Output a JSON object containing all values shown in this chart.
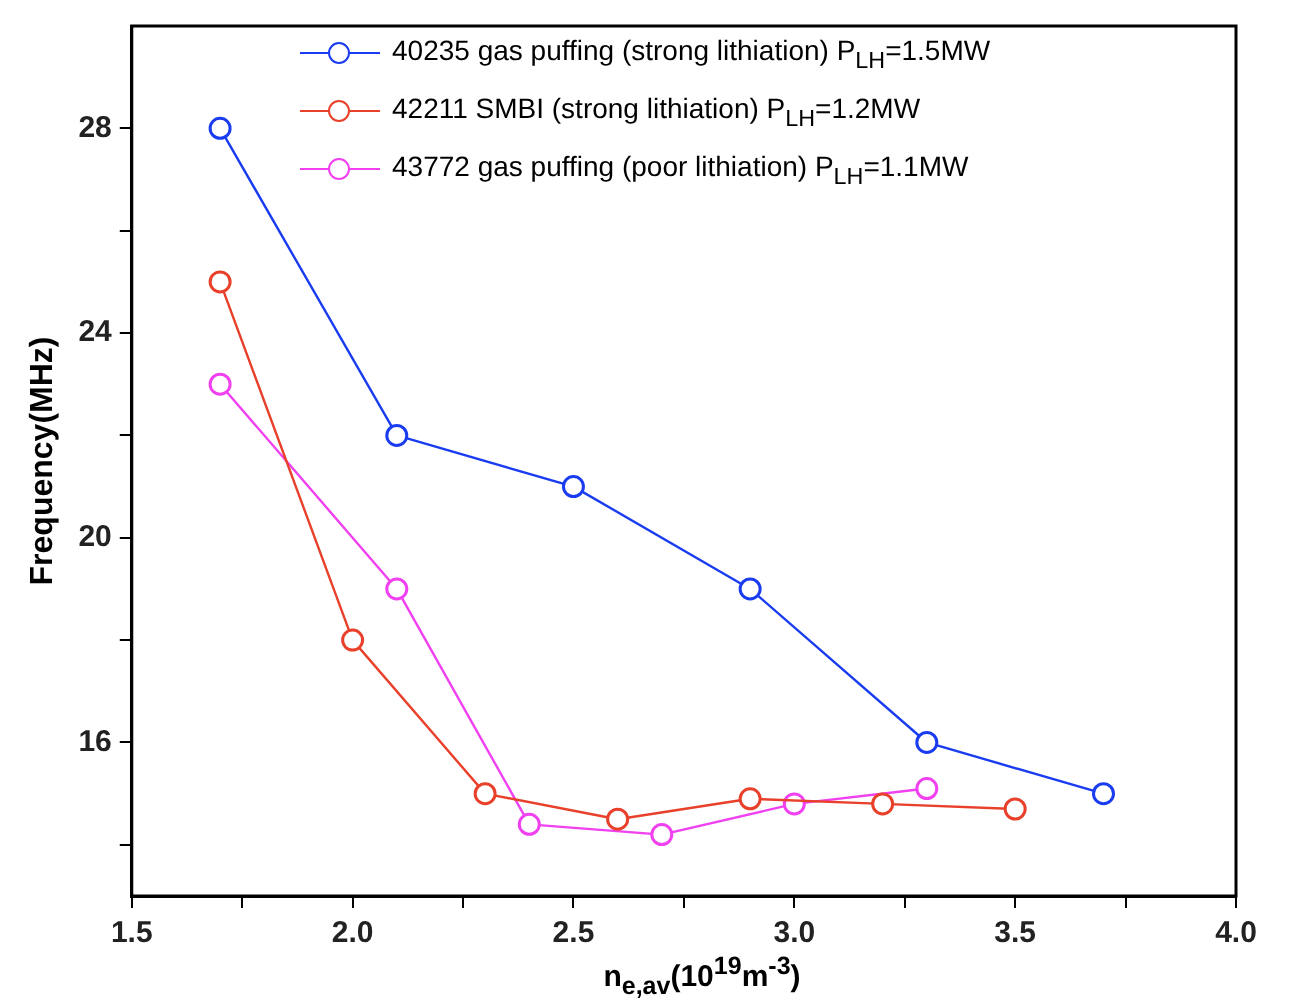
{
  "chart_data": {
    "type": "line",
    "xlabel": "n$_{e,av}$(10$^{19}$m$^{-3}$)",
    "ylabel": "Frequency(MHz)",
    "xlim": [
      1.5,
      4.0
    ],
    "xticks": [
      1.5,
      {
        "value": 1.75,
        "label": null
      },
      {
        "value": 2,
        "label": "2.0"
      },
      {
        "value": 2.25,
        "label": null
      },
      2.5,
      {
        "value": 2.75,
        "label": null
      },
      {
        "value": 3,
        "label": "3.0"
      },
      {
        "value": 3.25,
        "label": null
      },
      3.5,
      {
        "value": 3.75,
        "label": null
      },
      {
        "value": 4,
        "label": "4.0"
      }
    ],
    "ylim": [
      13,
      30
    ],
    "yticks": [
      {
        "value": 14,
        "label": null
      },
      16,
      {
        "value": 18,
        "label": null
      },
      20,
      {
        "value": 22,
        "label": null
      },
      24,
      {
        "value": 26,
        "label": null
      },
      28
    ],
    "grid": false,
    "legend": "top right",
    "marker": "circle",
    "line_style": "solid",
    "series": [
      {
        "name": "40235 gas puffing (strong lithiation) P$_{LH}$=1.5MW",
        "color": "#1a3cf0",
        "x": [
          1.7,
          2.1,
          2.5,
          2.9,
          3.3,
          3.7
        ],
        "values": [
          28,
          22,
          21,
          19,
          16,
          15
        ]
      },
      {
        "name": "42211  SMBI (strong lithiation) P$_{LH}$=1.2MW",
        "color": "#e8402a",
        "x": [
          1.7,
          2.0,
          2.3,
          2.6,
          2.9,
          3.2,
          3.5
        ],
        "values": [
          25,
          18,
          15,
          14.5,
          14.9,
          14.8,
          14.7
        ]
      },
      {
        "name": "43772 gas puffing (poor lithiation) P$_{LH}$=1.1MW",
        "color": "#f040f0",
        "x": [
          1.7,
          2.1,
          2.4,
          2.7,
          3.0,
          3.3
        ],
        "values": [
          23,
          19,
          14.4,
          14.2,
          14.8,
          15.1
        ]
      }
    ]
  }
}
